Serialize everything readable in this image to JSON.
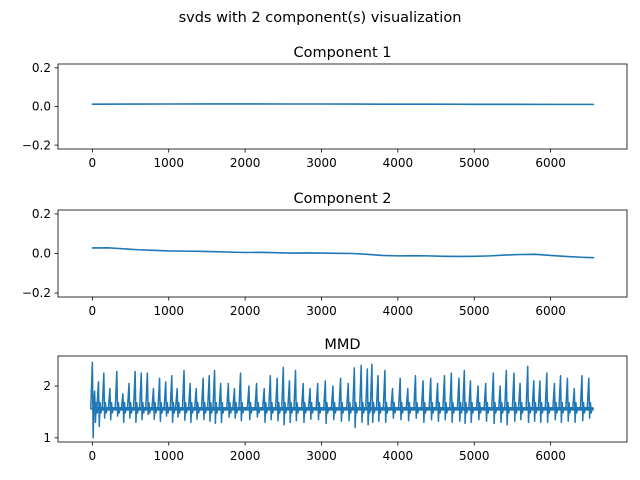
{
  "figure": {
    "suptitle": "svds with 2 component(s) visualization"
  },
  "colors": {
    "series": "#1f77b4",
    "axes": "#000000",
    "background": "#ffffff"
  },
  "chart_data": [
    {
      "type": "line",
      "title": "Component 1",
      "xlabel": "",
      "ylabel": "",
      "xlim": [
        -450,
        7000
      ],
      "ylim": [
        -0.22,
        0.22
      ],
      "xticks": [
        0,
        1000,
        2000,
        3000,
        4000,
        5000,
        6000
      ],
      "xtick_labels": [
        "0",
        "1000",
        "2000",
        "3000",
        "4000",
        "5000",
        "6000"
      ],
      "yticks": [
        -0.2,
        0.0,
        0.2
      ],
      "ytick_labels": [
        "−0.2",
        "0.0",
        "0.2"
      ],
      "grid": false,
      "series": [
        {
          "x": [
            0,
            500,
            1000,
            1500,
            2000,
            2500,
            3000,
            3500,
            4000,
            4500,
            5000,
            5500,
            6000,
            6560
          ],
          "y": [
            0.012,
            0.0125,
            0.013,
            0.0135,
            0.0135,
            0.013,
            0.013,
            0.0125,
            0.012,
            0.012,
            0.0115,
            0.0115,
            0.011,
            0.011
          ]
        }
      ]
    },
    {
      "type": "line",
      "title": "Component 2",
      "xlabel": "",
      "ylabel": "",
      "xlim": [
        -450,
        7000
      ],
      "ylim": [
        -0.22,
        0.22
      ],
      "xticks": [
        0,
        1000,
        2000,
        3000,
        4000,
        5000,
        6000
      ],
      "xtick_labels": [
        "0",
        "1000",
        "2000",
        "3000",
        "4000",
        "5000",
        "6000"
      ],
      "yticks": [
        -0.2,
        0.0,
        0.2
      ],
      "ytick_labels": [
        "−0.2",
        "0.0",
        "0.2"
      ],
      "grid": false,
      "series": [
        {
          "x": [
            0,
            200,
            400,
            600,
            800,
            1000,
            1200,
            1400,
            1600,
            1800,
            2000,
            2200,
            2400,
            2600,
            2800,
            3000,
            3200,
            3400,
            3600,
            3800,
            4000,
            4200,
            4400,
            4600,
            4800,
            5000,
            5200,
            5400,
            5600,
            5800,
            6000,
            6200,
            6400,
            6560
          ],
          "y": [
            0.028,
            0.029,
            0.024,
            0.019,
            0.016,
            0.013,
            0.012,
            0.011,
            0.009,
            0.007,
            0.005,
            0.006,
            0.004,
            0.002,
            0.003,
            0.002,
            0.001,
            0.0,
            -0.004,
            -0.01,
            -0.012,
            -0.011,
            -0.012,
            -0.014,
            -0.015,
            -0.014,
            -0.012,
            -0.008,
            -0.005,
            -0.004,
            -0.01,
            -0.015,
            -0.019,
            -0.021
          ]
        }
      ]
    },
    {
      "type": "line",
      "title": "MMD",
      "xlabel": "",
      "ylabel": "",
      "xlim": [
        -450,
        7000
      ],
      "ylim": [
        0.92,
        2.58
      ],
      "xticks": [
        0,
        1000,
        2000,
        3000,
        4000,
        5000,
        6000
      ],
      "xtick_labels": [
        "0",
        "1000",
        "2000",
        "3000",
        "4000",
        "5000",
        "6000"
      ],
      "yticks": [
        1,
        2
      ],
      "ytick_labels": [
        "1",
        "2"
      ],
      "grid": false,
      "baseline": 1.56,
      "series": [
        {
          "description_of_spikes": "approximate peak (high) and trough (low) values of periodic bursts",
          "x": [
            0,
            30,
            80,
            150,
            230,
            320,
            400,
            480,
            560,
            640,
            720,
            800,
            880,
            960,
            1040,
            1110,
            1200,
            1280,
            1360,
            1450,
            1530,
            1600,
            1680,
            1780,
            1860,
            1940,
            2050,
            2150,
            2250,
            2330,
            2420,
            2500,
            2580,
            2660,
            2760,
            2850,
            2950,
            3050,
            3150,
            3250,
            3350,
            3430,
            3520,
            3600,
            3660,
            3740,
            3830,
            3930,
            4030,
            4130,
            4230,
            4330,
            4430,
            4520,
            4610,
            4700,
            4800,
            4870,
            4950,
            5050,
            5150,
            5250,
            5340,
            5420,
            5520,
            5600,
            5700,
            5780,
            5860,
            5950,
            6050,
            6130,
            6220,
            6310,
            6410,
            6500
          ],
          "high": [
            2.46,
            1.9,
            2.08,
            2.25,
            1.95,
            2.28,
            1.85,
            2.05,
            2.28,
            2.25,
            2.25,
            1.95,
            2.15,
            2.08,
            2.2,
            1.95,
            2.3,
            2.05,
            1.95,
            2.15,
            2.2,
            2.3,
            2.05,
            2.05,
            1.95,
            2.25,
            2.0,
            2.05,
            1.95,
            2.2,
            2.15,
            2.36,
            2.1,
            2.3,
            2.05,
            1.95,
            2.05,
            2.1,
            2.0,
            2.15,
            2.05,
            2.35,
            2.4,
            2.33,
            2.42,
            2.2,
            2.3,
            1.95,
            2.15,
            1.95,
            2.2,
            2.1,
            2.15,
            2.05,
            2.2,
            2.25,
            2.15,
            2.3,
            2.1,
            2.0,
            2.05,
            2.25,
            2.0,
            2.3,
            2.25,
            2.05,
            2.38,
            2.1,
            2.1,
            2.25,
            2.05,
            2.2,
            2.15,
            1.95,
            2.2,
            2.15
          ],
          "low": [
            1.0,
            1.3,
            1.22,
            1.38,
            1.35,
            1.42,
            1.3,
            1.38,
            1.3,
            1.35,
            1.45,
            1.36,
            1.32,
            1.42,
            1.3,
            1.4,
            1.34,
            1.3,
            1.36,
            1.35,
            1.32,
            1.28,
            1.3,
            1.4,
            1.38,
            1.33,
            1.35,
            1.4,
            1.3,
            1.35,
            1.33,
            1.25,
            1.3,
            1.33,
            1.3,
            1.36,
            1.35,
            1.28,
            1.35,
            1.32,
            1.33,
            1.2,
            1.3,
            1.25,
            1.3,
            1.32,
            1.3,
            1.38,
            1.35,
            1.33,
            1.38,
            1.3,
            1.35,
            1.32,
            1.35,
            1.3,
            1.32,
            1.28,
            1.3,
            1.35,
            1.32,
            1.28,
            1.3,
            1.25,
            1.32,
            1.35,
            1.3,
            1.32,
            1.3,
            1.3,
            1.35,
            1.3,
            1.32,
            1.3,
            1.33,
            1.38
          ]
        }
      ]
    }
  ]
}
